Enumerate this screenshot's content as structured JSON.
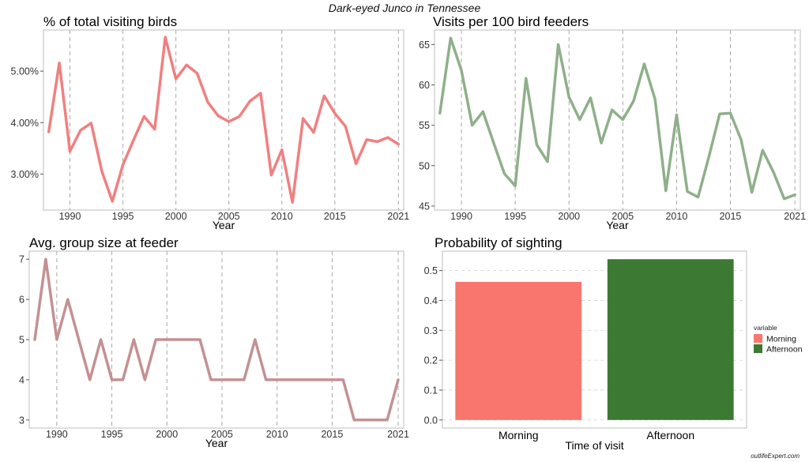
{
  "figure": {
    "title": "Dark-eyed Junco in Tennessee",
    "watermark": "outlifeExpert.com"
  },
  "colors": {
    "pct_line": "#f08080",
    "visits_line": "#8fb08a",
    "group_line": "#c39193",
    "morning": "#f8766d",
    "afternoon": "#3c7a34"
  },
  "chart_data": [
    {
      "id": "pct",
      "type": "line",
      "title": "% of total visiting birds",
      "xlabel": "Year",
      "ylabel": "",
      "x": [
        1988,
        1989,
        1990,
        1991,
        1992,
        1993,
        1994,
        1995,
        1996,
        1997,
        1998,
        1999,
        2000,
        2001,
        2002,
        2003,
        2004,
        2005,
        2006,
        2007,
        2008,
        2009,
        2010,
        2011,
        2012,
        2013,
        2014,
        2015,
        2016,
        2017,
        2018,
        2019,
        2020,
        2021
      ],
      "y": [
        3.82,
        5.16,
        3.44,
        3.85,
        3.99,
        3.06,
        2.47,
        3.18,
        3.66,
        4.12,
        3.87,
        5.66,
        4.85,
        5.12,
        4.96,
        4.4,
        4.13,
        4.02,
        4.12,
        4.42,
        4.57,
        2.98,
        3.47,
        2.45,
        4.08,
        3.81,
        4.52,
        4.18,
        3.93,
        3.2,
        3.67,
        3.63,
        3.71,
        3.58
      ],
      "xticks": [
        1990,
        1995,
        2000,
        2005,
        2010,
        2015,
        2021
      ],
      "yticks": [
        3,
        4,
        5
      ],
      "ytick_labels": [
        "3.00%",
        "4.00%",
        "5.00%"
      ],
      "xlim": [
        1987.5,
        2021.5
      ],
      "ylim": [
        2.3,
        5.8
      ],
      "grid": "vertical dashed"
    },
    {
      "id": "visits",
      "type": "line",
      "title": "Visits per 100 bird feeders",
      "xlabel": "Year",
      "ylabel": "",
      "x": [
        1988,
        1989,
        1990,
        1991,
        1992,
        1993,
        1994,
        1995,
        1996,
        1997,
        1998,
        1999,
        2000,
        2001,
        2002,
        2003,
        2004,
        2005,
        2006,
        2007,
        2008,
        2009,
        2010,
        2011,
        2012,
        2013,
        2014,
        2015,
        2016,
        2017,
        2018,
        2019,
        2020,
        2021
      ],
      "y": [
        56.5,
        65.8,
        61.8,
        55.0,
        56.7,
        52.8,
        49.0,
        47.5,
        60.8,
        52.6,
        50.5,
        65.0,
        58.5,
        55.7,
        58.4,
        52.8,
        56.9,
        55.7,
        58.0,
        62.6,
        58.2,
        46.9,
        56.3,
        46.8,
        46.1,
        51.1,
        56.4,
        56.5,
        53.2,
        46.7,
        51.9,
        49.2,
        45.9,
        46.4
      ],
      "xticks": [
        1990,
        1995,
        2000,
        2005,
        2010,
        2015,
        2021
      ],
      "yticks": [
        45,
        50,
        55,
        60,
        65
      ],
      "ytick_labels": [
        "45",
        "50",
        "55",
        "60",
        "65"
      ],
      "xlim": [
        1987.5,
        2021.5
      ],
      "ylim": [
        44.5,
        66.8
      ],
      "grid": "vertical dashed"
    },
    {
      "id": "group",
      "type": "line",
      "title": "Avg. group size at feeder",
      "xlabel": "Year",
      "ylabel": "",
      "x": [
        1988,
        1989,
        1990,
        1991,
        1992,
        1993,
        1994,
        1995,
        1996,
        1997,
        1998,
        1999,
        2000,
        2001,
        2002,
        2003,
        2004,
        2005,
        2006,
        2007,
        2008,
        2009,
        2010,
        2011,
        2012,
        2013,
        2014,
        2015,
        2016,
        2017,
        2018,
        2019,
        2020,
        2021
      ],
      "y": [
        5,
        7,
        5,
        6,
        5,
        4,
        5,
        4,
        4,
        5,
        4,
        5,
        5,
        5,
        5,
        5,
        4,
        4,
        4,
        4,
        5,
        4,
        4,
        4,
        4,
        4,
        4,
        4,
        4,
        3,
        3,
        3,
        3,
        4
      ],
      "xticks": [
        1990,
        1995,
        2000,
        2005,
        2010,
        2015,
        2021
      ],
      "yticks": [
        3,
        4,
        5,
        6,
        7
      ],
      "ytick_labels": [
        "3",
        "4",
        "5",
        "6",
        "7"
      ],
      "xlim": [
        1987.5,
        2021.5
      ],
      "ylim": [
        2.8,
        7.2
      ],
      "grid": "vertical dashed"
    },
    {
      "id": "prob",
      "type": "bar",
      "title": "Probability of sighting",
      "xlabel": "Time of visit",
      "ylabel": "",
      "categories": [
        "Morning",
        "Afternoon"
      ],
      "values": [
        0.462,
        0.538
      ],
      "yticks": [
        0.0,
        0.1,
        0.2,
        0.3,
        0.4,
        0.5
      ],
      "ytick_labels": [
        "0.0",
        "0.1",
        "0.2",
        "0.3",
        "0.4",
        "0.5"
      ],
      "ylim": [
        -0.027,
        0.565
      ],
      "grid": "horizontal dashed",
      "legend": {
        "title": "variable",
        "placement": "right",
        "items": [
          "Morning",
          "Afternoon"
        ]
      }
    }
  ]
}
